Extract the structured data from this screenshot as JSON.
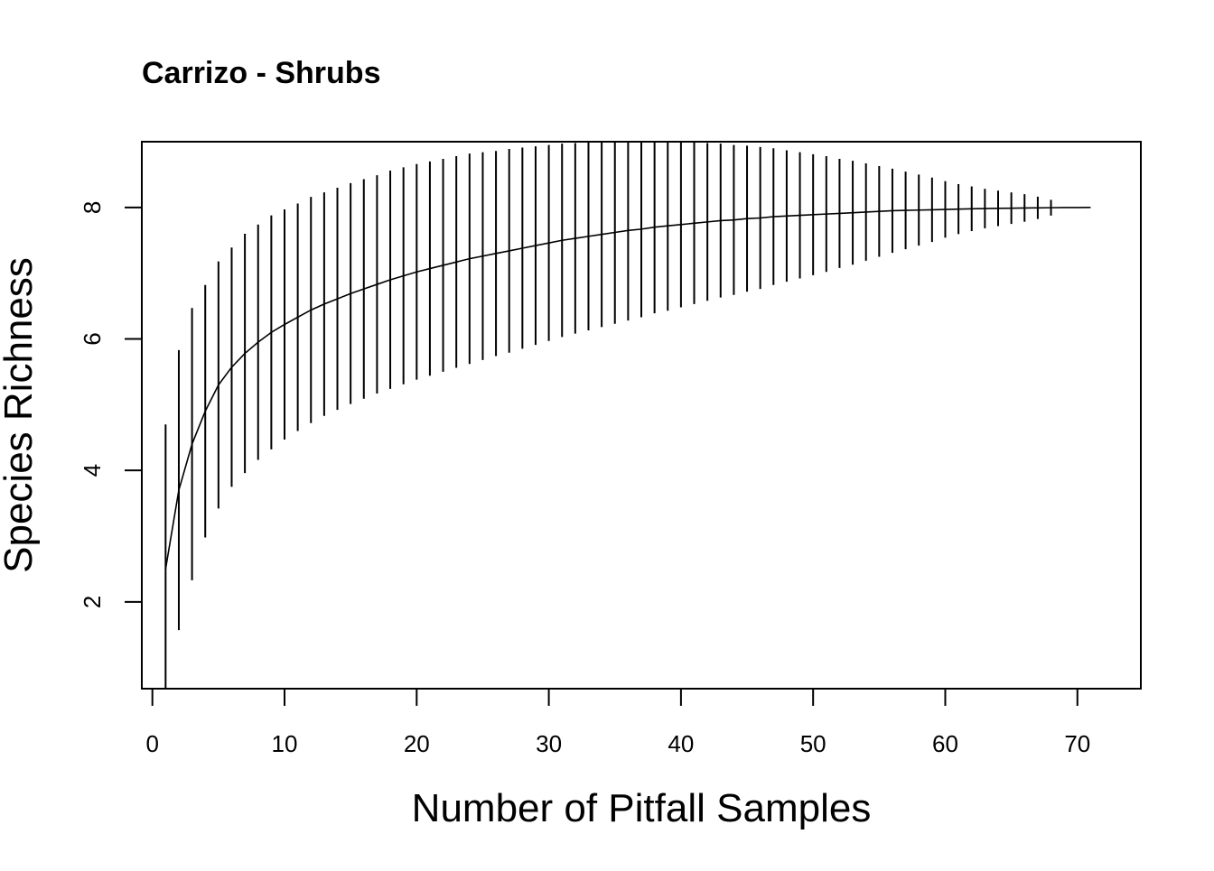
{
  "chart_data": {
    "type": "line",
    "title": "Carrizo - Shrubs",
    "xlabel": "Number of Pitfall Samples",
    "ylabel": "Species Richness",
    "xlim": [
      -0.8,
      74.8
    ],
    "ylim": [
      0.68,
      9.0
    ],
    "x_ticks": [
      0,
      10,
      20,
      30,
      40,
      50,
      60,
      70
    ],
    "y_ticks": [
      2,
      4,
      6,
      8
    ],
    "grid": false,
    "legend": "none",
    "series": [
      {
        "x": [
          1,
          2,
          3,
          4,
          5,
          6,
          7,
          8,
          9,
          10,
          11,
          12,
          13,
          14,
          15,
          16,
          17,
          18,
          19,
          20,
          21,
          22,
          23,
          24,
          25,
          26,
          27,
          28,
          29,
          30,
          31,
          32,
          33,
          34,
          35,
          36,
          37,
          38,
          39,
          40,
          41,
          42,
          43,
          44,
          45,
          46,
          47,
          48,
          49,
          50,
          51,
          52,
          53,
          54,
          55,
          56,
          57,
          58,
          59,
          60,
          61,
          62,
          63,
          64,
          65,
          66,
          67,
          68,
          69,
          70,
          71
        ],
        "y": [
          2.5,
          3.7,
          4.4,
          4.9,
          5.3,
          5.57,
          5.78,
          5.95,
          6.1,
          6.22,
          6.33,
          6.44,
          6.53,
          6.61,
          6.69,
          6.76,
          6.83,
          6.9,
          6.96,
          7.02,
          7.07,
          7.12,
          7.17,
          7.22,
          7.26,
          7.3,
          7.34,
          7.38,
          7.42,
          7.46,
          7.5,
          7.53,
          7.56,
          7.59,
          7.62,
          7.65,
          7.67,
          7.7,
          7.72,
          7.74,
          7.76,
          7.78,
          7.8,
          7.81,
          7.83,
          7.84,
          7.86,
          7.87,
          7.88,
          7.89,
          7.9,
          7.91,
          7.92,
          7.93,
          7.94,
          7.95,
          7.955,
          7.96,
          7.965,
          7.97,
          7.975,
          7.98,
          7.983,
          7.986,
          7.989,
          7.992,
          7.994,
          7.996,
          7.998,
          7.999,
          8.0
        ],
        "error_half_width": [
          2.2,
          2.13,
          2.07,
          1.92,
          1.88,
          1.82,
          1.82,
          1.79,
          1.78,
          1.75,
          1.73,
          1.72,
          1.7,
          1.69,
          1.68,
          1.67,
          1.66,
          1.66,
          1.65,
          1.64,
          1.63,
          1.62,
          1.61,
          1.6,
          1.58,
          1.56,
          1.55,
          1.53,
          1.51,
          1.49,
          1.47,
          1.45,
          1.43,
          1.41,
          1.39,
          1.37,
          1.34,
          1.31,
          1.29,
          1.26,
          1.23,
          1.2,
          1.17,
          1.14,
          1.11,
          1.08,
          1.04,
          1.0,
          0.96,
          0.92,
          0.88,
          0.83,
          0.79,
          0.74,
          0.69,
          0.64,
          0.59,
          0.54,
          0.49,
          0.43,
          0.38,
          0.34,
          0.3,
          0.27,
          0.24,
          0.21,
          0.17,
          0.12,
          0.0,
          0.0,
          0.0
        ]
      }
    ]
  }
}
